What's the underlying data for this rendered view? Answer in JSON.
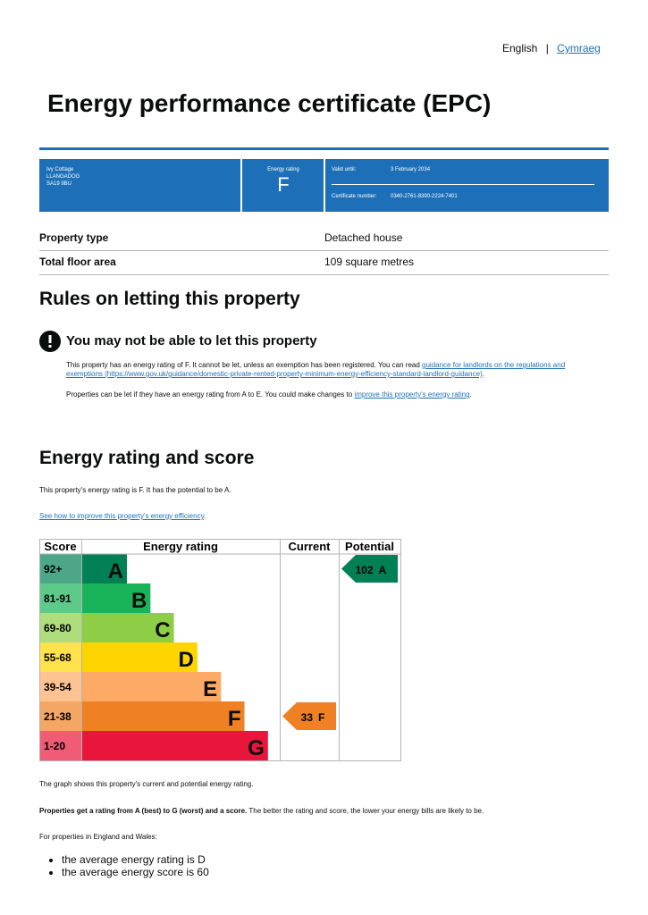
{
  "language": {
    "english": "English",
    "separator": "|",
    "welsh": "Cymraeg"
  },
  "title": "Energy performance certificate (EPC)",
  "summary": {
    "address": [
      "Ivy Cottage",
      "LLANGADOG",
      "SA19 9BU"
    ],
    "rating_label": "Energy rating",
    "rating": "F",
    "valid_label": "Valid until:",
    "valid": "3 February 2034",
    "cert_label": "Certificate number:",
    "cert": "0340-2761-8390-2224-7401"
  },
  "details": [
    [
      "Property type",
      "Detached house"
    ],
    [
      "Total floor area",
      "109 square metres"
    ]
  ],
  "letting": {
    "heading": "Rules on letting this property",
    "warning": "You may not be able to let this property",
    "para1": [
      "This property has an energy rating of F. It cannot be let, unless an exemption has been registered. You can read ",
      "guidance for landlords on the regulations and exemptions (https://www.gov.uk/guidance/domestic-private-rented-property-minimum-energy-efficiency-standard-landlord-guidance)",
      "."
    ],
    "para2": [
      "Properties can be let if they have an energy rating from A to E. You could make changes to ",
      "improve this property's energy rating",
      "."
    ]
  },
  "rating_section": {
    "heading": "Energy rating and score",
    "intro": "This property's energy rating is F. It has the potential to be A.",
    "link": [
      "See how to improve this property's energy efficiency",
      "."
    ]
  },
  "epc_chart": {
    "headers": [
      "Score",
      "Energy rating",
      "Current",
      "Potential"
    ],
    "bands": [
      {
        "score": "92+",
        "letter": "A",
        "color": "#008054"
      },
      {
        "score": "81-91",
        "letter": "B",
        "color": "#19b459"
      },
      {
        "score": "69-80",
        "letter": "C",
        "color": "#8dce46"
      },
      {
        "score": "55-68",
        "letter": "D",
        "color": "#ffd500"
      },
      {
        "score": "39-54",
        "letter": "E",
        "color": "#fcaa65"
      },
      {
        "score": "21-38",
        "letter": "F",
        "color": "#ef8023"
      },
      {
        "score": "1-20",
        "letter": "G",
        "color": "#e9153b"
      }
    ],
    "current": {
      "score": "33",
      "letter": "F"
    },
    "potential": {
      "score": "102",
      "letter": "A"
    }
  },
  "footer": {
    "graph_note": "The graph shows this property's current and potential energy rating.",
    "rating_note": [
      "Properties get a rating from A (best) to G (worst) and a score.",
      " The better the rating and score, the lower your energy bills are likely to be."
    ],
    "regional": "For properties in England and Wales:",
    "averages": [
      "the average energy rating is D",
      "the average energy score is 60"
    ]
  }
}
